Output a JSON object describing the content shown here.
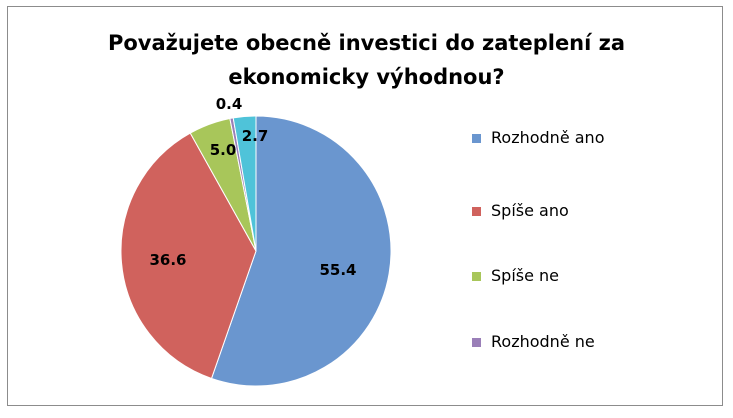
{
  "chart_data": {
    "type": "pie",
    "title_lines": [
      "Považujete obecně investici do zateplení za",
      "ekonomicky výhodnou?"
    ],
    "slices": [
      {
        "label": "Rozhodně ano",
        "value": 55.4,
        "value_label": "55.4",
        "color": "#6a96cf"
      },
      {
        "label": "Spíše ano",
        "value": 36.6,
        "value_label": "36.6",
        "color": "#d0625d"
      },
      {
        "label": "Spíše ne",
        "value": 5.0,
        "value_label": "5.0",
        "color": "#a8c65a"
      },
      {
        "label": "Rozhodně ne",
        "value": 0.4,
        "value_label": "0.4",
        "color": "#9a7fb8"
      },
      {
        "label": "",
        "value": 2.7,
        "value_label": "2.7",
        "color": "#4fc3d9"
      }
    ],
    "legend_position": "right"
  }
}
